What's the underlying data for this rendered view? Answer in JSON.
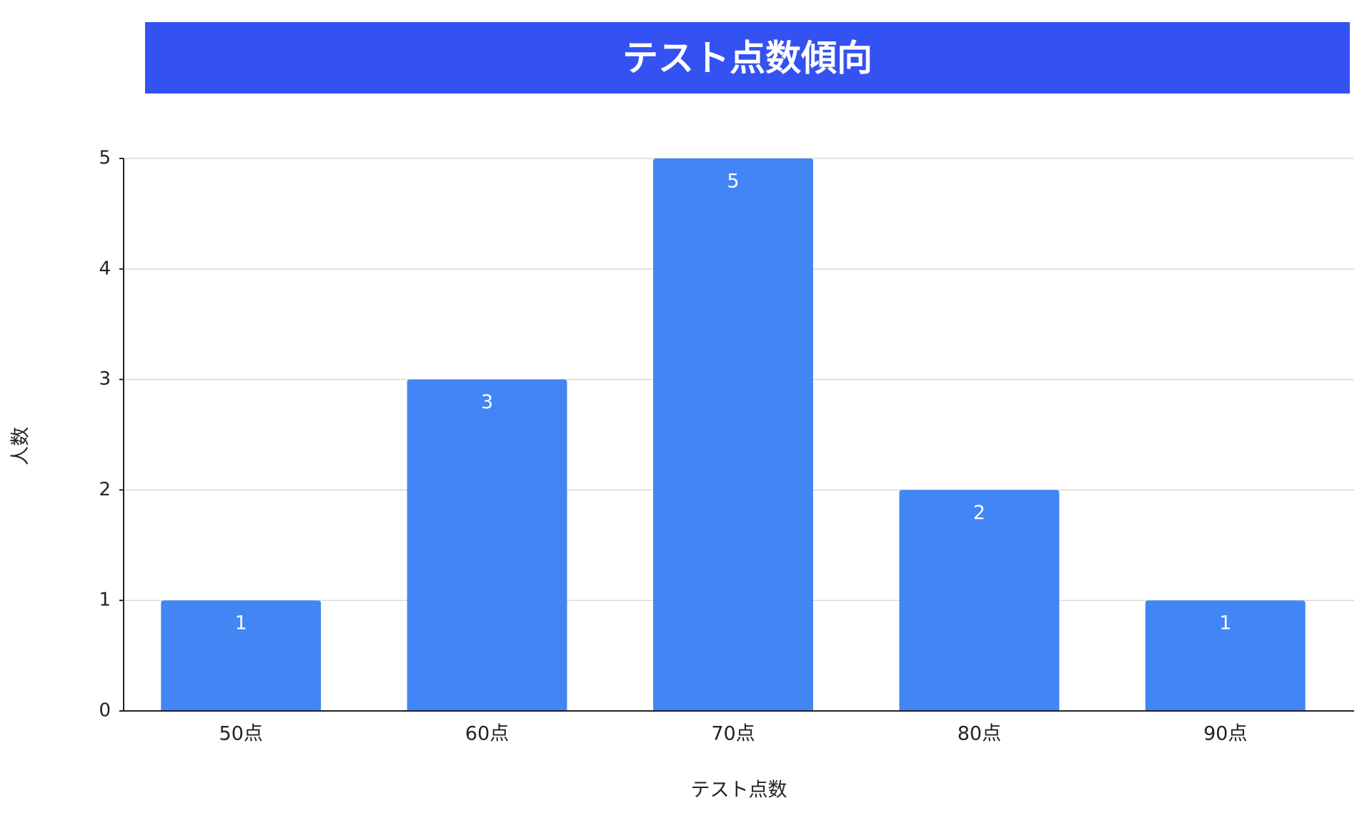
{
  "chart_data": {
    "type": "bar",
    "title": "テスト点数傾向",
    "xlabel": "テスト点数",
    "ylabel": "人数",
    "categories": [
      "50点",
      "60点",
      "70点",
      "80点",
      "90点"
    ],
    "values": [
      1,
      3,
      5,
      2,
      1
    ],
    "ylim": [
      0,
      5
    ],
    "yticks": [
      0,
      1,
      2,
      3,
      4,
      5
    ],
    "grid": true,
    "legend": "none",
    "colors": {
      "title_band": "#3452F1",
      "title_text": "#ffffff",
      "bar": "#4285F4",
      "bar_label": "#ffffff",
      "gridline": "#d9d9d9",
      "axis": "#222222",
      "text": "#222222"
    }
  }
}
